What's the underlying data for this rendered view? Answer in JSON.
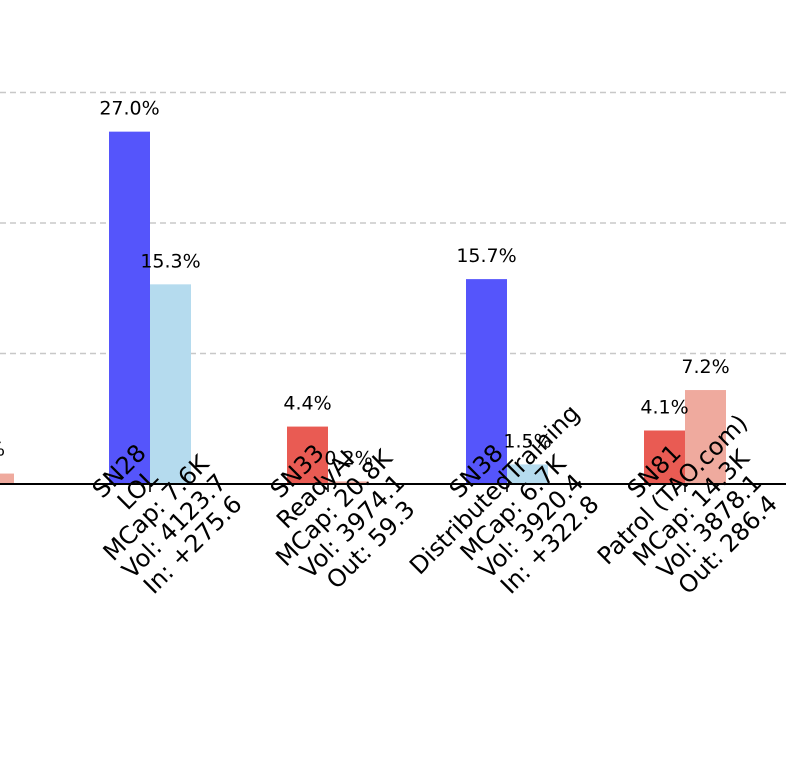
{
  "chart_data": {
    "type": "bar",
    "title": "",
    "xlabel": "",
    "ylabel": "",
    "ylim": [
      0,
      30
    ],
    "grid": {
      "y": true,
      "style": "dashed"
    },
    "categories": [
      {
        "id": "SN28",
        "lines": [
          "SN28",
          "LOL",
          "MCap: 7.6K",
          "Vol: 4123.7",
          "In: +275.6"
        ]
      },
      {
        "id": "SN33",
        "lines": [
          "SN33",
          "ReadyAI",
          "MCap: 20.8K",
          "Vol: 3974.1",
          "Out: 59.3"
        ]
      },
      {
        "id": "SN38",
        "lines": [
          "SN38",
          "DistributedTraining",
          "MCap: 6.7K",
          "Vol: 3920.4",
          "In: +322.8"
        ]
      },
      {
        "id": "SN81",
        "lines": [
          "SN81",
          "Patrol (TAO.com)",
          "MCap: 14.3K",
          "Vol: 3878.1",
          "Out: 286.4"
        ]
      }
    ],
    "series": [
      {
        "values": [
          27.0,
          4.4,
          15.7,
          4.1
        ],
        "labels": [
          "27.0%",
          "4.4%",
          "15.7%",
          "4.1%"
        ],
        "colors": [
          "#5555fb",
          "#e95b53",
          "#5555fb",
          "#e95b53"
        ]
      },
      {
        "values": [
          15.3,
          0.2,
          1.5,
          7.2
        ],
        "labels": [
          "15.3%",
          "0.2%",
          "1.5%",
          "7.2%"
        ],
        "colors": [
          "#b5dbee",
          "#efaa9e",
          "#b5dbee",
          "#efaa9e"
        ]
      }
    ],
    "clipped_left_bar": {
      "value": 0.8,
      "label": "%",
      "color": "#efaa9e"
    },
    "colors": {
      "grid": "#c8c8c8",
      "axis": "#000000"
    }
  }
}
